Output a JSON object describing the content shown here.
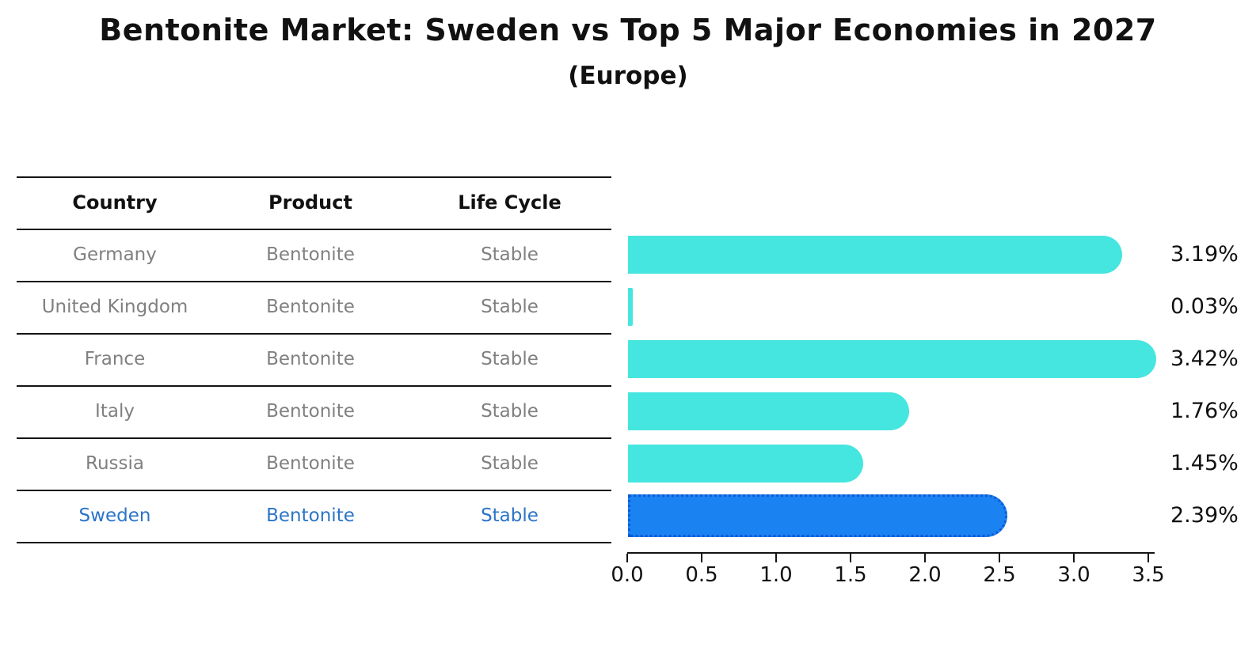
{
  "title": "Bentonite Market: Sweden vs Top 5 Major Economies in 2027",
  "subtitle": "(Europe)",
  "table": {
    "headers": [
      "Country",
      "Product",
      "Life Cycle"
    ],
    "rows": [
      {
        "country": "Germany",
        "product": "Bentonite",
        "life_cycle": "Stable",
        "highlight": false
      },
      {
        "country": "United Kingdom",
        "product": "Bentonite",
        "life_cycle": "Stable",
        "highlight": false
      },
      {
        "country": "France",
        "product": "Bentonite",
        "life_cycle": "Stable",
        "highlight": false
      },
      {
        "country": "Italy",
        "product": "Bentonite",
        "life_cycle": "Stable",
        "highlight": false
      },
      {
        "country": "Russia",
        "product": "Bentonite",
        "life_cycle": "Stable",
        "highlight": false
      },
      {
        "country": "Sweden",
        "product": "Bentonite",
        "life_cycle": "Stable",
        "highlight": true
      }
    ]
  },
  "chart_data": {
    "type": "bar",
    "orientation": "horizontal",
    "title": "Bentonite Market: Sweden vs Top 5 Major Economies in 2027",
    "subtitle": "(Europe)",
    "categories": [
      "Germany",
      "United Kingdom",
      "France",
      "Italy",
      "Russia",
      "Sweden"
    ],
    "values": [
      3.19,
      0.03,
      3.42,
      1.76,
      1.45,
      2.39
    ],
    "value_labels": [
      "3.19%",
      "0.03%",
      "3.42%",
      "1.76%",
      "1.45%",
      "2.39%"
    ],
    "x_tick_labels": [
      "0.0",
      "0.5",
      "1.0",
      "1.5",
      "2.0",
      "2.5",
      "3.0",
      "3.5"
    ],
    "xlim": [
      0,
      3.5
    ],
    "highlight_index": 5,
    "grid": false,
    "legend": null
  },
  "colors": {
    "bar": "#45E6DF",
    "highlight_bar": "#1B82F2",
    "highlight_bar_edge": "#0E5AD8",
    "highlight_text": "#2B74C8",
    "row_text": "#808080",
    "header_text": "#111111",
    "axis": "#141414",
    "background": "#FFFFFF"
  }
}
